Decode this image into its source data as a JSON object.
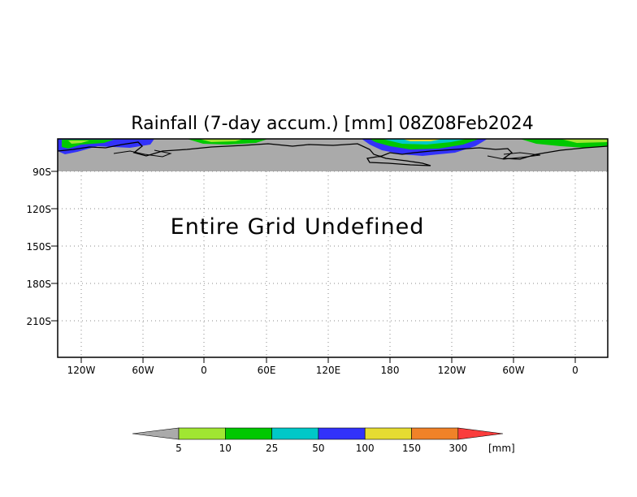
{
  "map": {
    "title": "Rainfall (7-day accum.) [mm] 08Z08Feb2024",
    "message": "Entire Grid Undefined",
    "lat_labels": [
      "90S",
      "120S",
      "150S",
      "180S",
      "210S"
    ],
    "lon_labels": [
      "120W",
      "60W",
      "0",
      "60E",
      "120E",
      "180",
      "120W",
      "60W",
      "0"
    ],
    "grid": "dotted",
    "land_color": "#aaaaaa"
  },
  "colorbar": {
    "unit": "[mm]",
    "thresholds": [
      "5",
      "10",
      "25",
      "50",
      "100",
      "150",
      "300"
    ],
    "colors": [
      "#aaaaaa",
      "#a0e632",
      "#00c800",
      "#00c8c8",
      "#3232fa",
      "#e6dc32",
      "#f08228",
      "#fa3c3c"
    ]
  }
}
